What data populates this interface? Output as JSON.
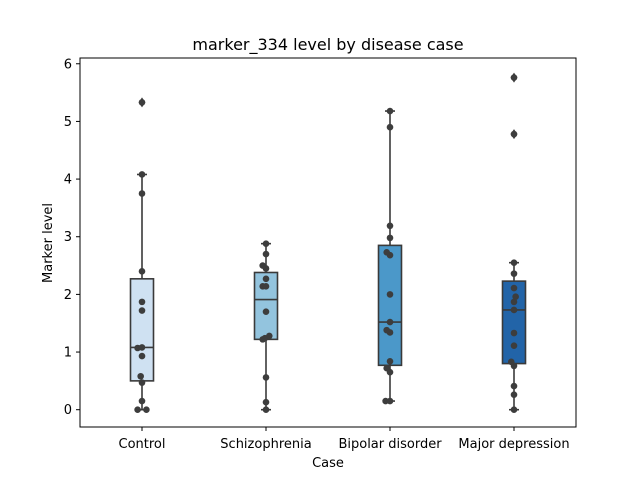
{
  "chart_data": {
    "type": "box",
    "title": "marker_334 level by disease case",
    "xlabel": "Case",
    "ylabel": "Marker level",
    "ylim": [
      -0.3,
      6.1
    ],
    "yticks": [
      0,
      1,
      2,
      3,
      4,
      5,
      6
    ],
    "grid": false,
    "categories": [
      "Control",
      "Schizophrenia",
      "Bipolar disorder",
      "Major depression"
    ],
    "colors": [
      "#cfe1f2",
      "#93c4de",
      "#4b98c9",
      "#2264a8"
    ],
    "boxes": [
      {
        "category": "Control",
        "q1": 0.5,
        "median": 1.08,
        "q3": 2.27,
        "whisker_low": 0.0,
        "whisker_high": 4.08,
        "outliers": [
          5.33
        ]
      },
      {
        "category": "Schizophrenia",
        "q1": 1.22,
        "median": 1.91,
        "q3": 2.38,
        "whisker_low": 0.0,
        "whisker_high": 2.88,
        "outliers": []
      },
      {
        "category": "Bipolar disorder",
        "q1": 0.77,
        "median": 1.52,
        "q3": 2.85,
        "whisker_low": 0.15,
        "whisker_high": 5.18,
        "outliers": []
      },
      {
        "category": "Major depression",
        "q1": 0.8,
        "median": 1.73,
        "q3": 2.23,
        "whisker_low": 0.0,
        "whisker_high": 2.55,
        "outliers": [
          4.78,
          5.76
        ]
      }
    ],
    "points": [
      {
        "category": "Control",
        "values": [
          0.0,
          0.0,
          0.15,
          0.47,
          0.58,
          0.93,
          1.07,
          1.08,
          1.72,
          1.87,
          2.4,
          3.75,
          4.08,
          5.33
        ],
        "offsets": [
          -0.4,
          0.4,
          0.0,
          0.0,
          -0.12,
          0.0,
          -0.4,
          0.0,
          0.0,
          0.0,
          0.0,
          0.0,
          0.0,
          0.0
        ]
      },
      {
        "category": "Schizophrenia",
        "values": [
          0.0,
          0.13,
          0.56,
          1.22,
          1.24,
          1.28,
          1.7,
          2.14,
          2.14,
          2.27,
          2.45,
          2.5,
          2.7,
          2.88
        ],
        "offsets": [
          0.0,
          0.0,
          0.0,
          -0.3,
          -0.1,
          0.3,
          0.0,
          -0.3,
          0.0,
          0.0,
          0.0,
          -0.3,
          0.0,
          0.0
        ]
      },
      {
        "category": "Bipolar disorder",
        "values": [
          0.15,
          0.15,
          0.65,
          0.72,
          0.84,
          1.34,
          1.38,
          1.52,
          2.0,
          2.68,
          2.73,
          2.98,
          3.19,
          4.9,
          5.18
        ],
        "offsets": [
          -0.4,
          0.0,
          0.0,
          -0.3,
          0.0,
          0.0,
          -0.3,
          0.0,
          0.0,
          0.0,
          -0.3,
          0.0,
          0.0,
          0.0,
          0.0
        ]
      },
      {
        "category": "Major depression",
        "values": [
          0.0,
          0.26,
          0.41,
          0.76,
          0.83,
          1.11,
          1.33,
          1.73,
          1.87,
          1.96,
          2.11,
          2.36,
          2.55,
          4.78,
          5.76
        ],
        "offsets": [
          0.0,
          0.0,
          0.0,
          0.0,
          -0.25,
          0.0,
          0.0,
          0.0,
          0.0,
          0.15,
          0.0,
          0.0,
          0.0,
          0.0,
          0.0
        ]
      }
    ]
  }
}
